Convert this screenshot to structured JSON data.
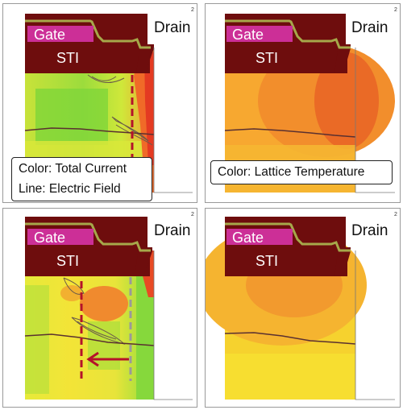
{
  "panels": [
    {
      "gate": "Gate",
      "sti": "STI",
      "drain": "Drain",
      "corner": "2",
      "legend": [
        "Color: Total Current",
        "Line: Electric Field"
      ]
    },
    {
      "gate": "Gate",
      "sti": "STI",
      "drain": "Drain",
      "corner": "2",
      "legend": [
        "Color: Lattice Temperature"
      ]
    },
    {
      "gate": "Gate",
      "sti": "STI",
      "drain": "Drain",
      "corner": "2"
    },
    {
      "gate": "Gate",
      "sti": "STI",
      "drain": "Drain",
      "corner": "2"
    }
  ],
  "colors": {
    "sti": "#6e0d0d",
    "gate": "#cc2f97",
    "gate_liner": "#a6a84a",
    "red_marker": "#b5122a",
    "gray_marker": "#9a9a9a"
  }
}
